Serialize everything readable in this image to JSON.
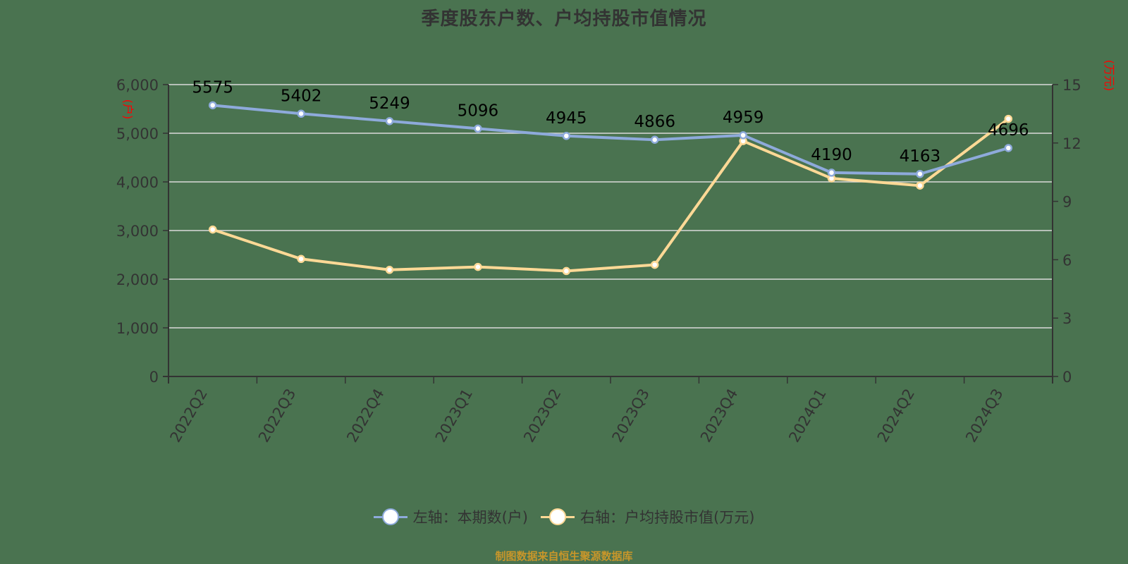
{
  "title": "季度股东户数、户均持股市值情况",
  "colors": {
    "background": "#4a7350",
    "series_left": "#8eaadb",
    "series_right": "#ffd996",
    "axis": "#333333",
    "grid": "#d9d9d9",
    "unit_label": "#ff0000",
    "data_label": "#000000",
    "footer": "#c8962a"
  },
  "axes": {
    "left": {
      "unit": "(户)",
      "ticks": [
        "0",
        "1,000",
        "2,000",
        "3,000",
        "4,000",
        "5,000",
        "6,000"
      ]
    },
    "right": {
      "unit": "(万元)",
      "ticks": [
        "0",
        "3",
        "6",
        "9",
        "12",
        "15"
      ]
    }
  },
  "legend": {
    "left_series": "左轴：本期数(户)",
    "right_series": "右轴：户均持股市值(万元)"
  },
  "footer": "制图数据来自恒生聚源数据库",
  "chart_data": {
    "type": "line",
    "title": "季度股东户数、户均持股市值情况",
    "categories": [
      "2022Q2",
      "2022Q3",
      "2022Q4",
      "2023Q1",
      "2023Q2",
      "2023Q3",
      "2023Q4",
      "2024Q1",
      "2024Q2",
      "2024Q3"
    ],
    "series": [
      {
        "name": "左轴：本期数(户)",
        "axis": "left",
        "values": [
          5575,
          5402,
          5249,
          5096,
          4945,
          4866,
          4959,
          4190,
          4163,
          4696
        ],
        "data_labels": [
          "5575",
          "5402",
          "5249",
          "5096",
          "4945",
          "4866",
          "4959",
          "4190",
          "4163",
          "4696"
        ]
      },
      {
        "name": "右轴：户均持股市值(万元)",
        "axis": "right",
        "values": [
          7.55,
          6.04,
          5.48,
          5.63,
          5.42,
          5.74,
          12.1,
          10.18,
          9.81,
          13.24
        ]
      }
    ],
    "xlabel": "",
    "ylabel_left": "(户)",
    "ylabel_right": "(万元)",
    "ylim_left": [
      0,
      6000
    ],
    "ylim_right": [
      0,
      15
    ],
    "grid": true,
    "legend_position": "bottom"
  }
}
